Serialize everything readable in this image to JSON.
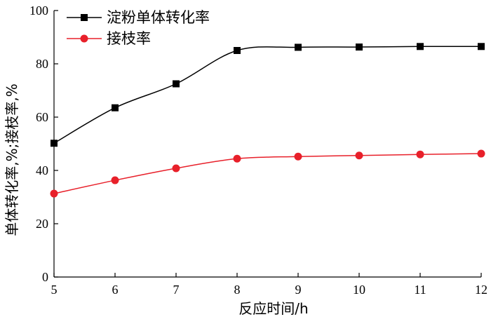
{
  "chart_data": {
    "type": "line",
    "xlabel": "反应时间/h",
    "ylabel": "单体转化率,%;接枝率,%",
    "xlim": [
      5,
      12
    ],
    "ylim": [
      0,
      100
    ],
    "x_ticks": [
      "5",
      "6",
      "7",
      "8",
      "9",
      "10",
      "11",
      "12"
    ],
    "y_ticks": [
      "0",
      "20",
      "40",
      "60",
      "80",
      "100"
    ],
    "grid": false,
    "legend_position": "top-left",
    "x": [
      5,
      6,
      7,
      8,
      9,
      10,
      11,
      12
    ],
    "series": [
      {
        "name": "淀粉单体转化率",
        "marker": "square",
        "color": "#000000",
        "values": [
          50.2,
          63.5,
          72.5,
          85.0,
          86.2,
          86.3,
          86.5,
          86.5
        ]
      },
      {
        "name": "接枝率",
        "marker": "circle",
        "color": "#e8202a",
        "values": [
          31.3,
          36.3,
          40.8,
          44.4,
          45.2,
          45.6,
          46.0,
          46.3
        ]
      }
    ]
  }
}
